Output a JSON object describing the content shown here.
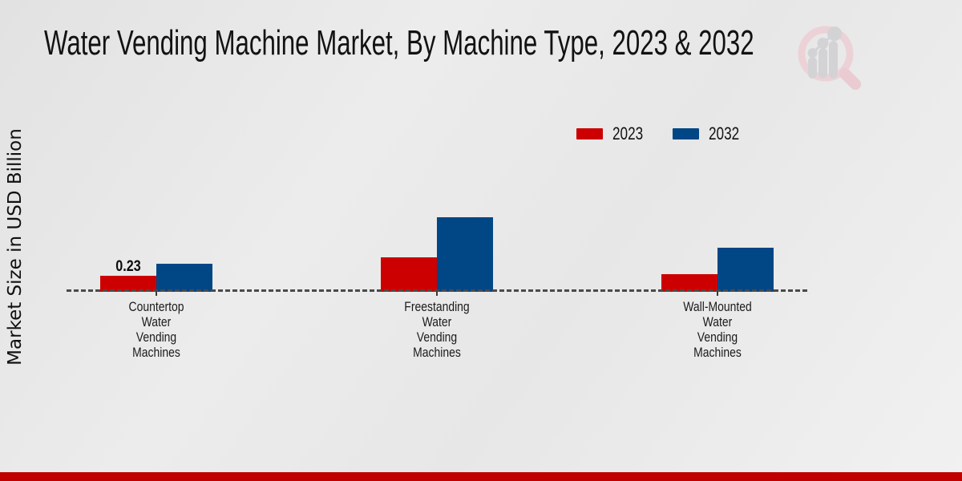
{
  "title": "Water Vending Machine Market, By Machine Type, 2023 & 2032",
  "logo": {
    "name": "magnifier-bar-chart-watermark-logo",
    "ring_color": "#ecd2d7",
    "bars_color": "#d3d3d6"
  },
  "chart_data": {
    "type": "bar",
    "title": "Water Vending Machine Market, By Machine Type, 2023 & 2032",
    "xlabel": "",
    "ylabel": "Market Size in USD Billion",
    "categories": [
      "Countertop Water Vending Machines",
      "Freestanding Water Vending Machines",
      "Wall-Mounted Water Vending Machines"
    ],
    "series": [
      {
        "name": "2023",
        "color": "#cc0000",
        "values": [
          0.23,
          0.49,
          0.25
        ]
      },
      {
        "name": "2032",
        "color": "#014685",
        "values": [
          0.4,
          1.07,
          0.63
        ]
      }
    ],
    "data_labels": [
      {
        "series_index": 0,
        "category_index": 0,
        "text": "0.23"
      }
    ],
    "baseline": {
      "value": 0,
      "style": "dashed",
      "color": "#4a4a4a"
    },
    "legend_position": "top-right",
    "grid": false,
    "ylim": [
      0,
      1.2
    ]
  },
  "footer": {
    "band_color": "#c00000"
  }
}
